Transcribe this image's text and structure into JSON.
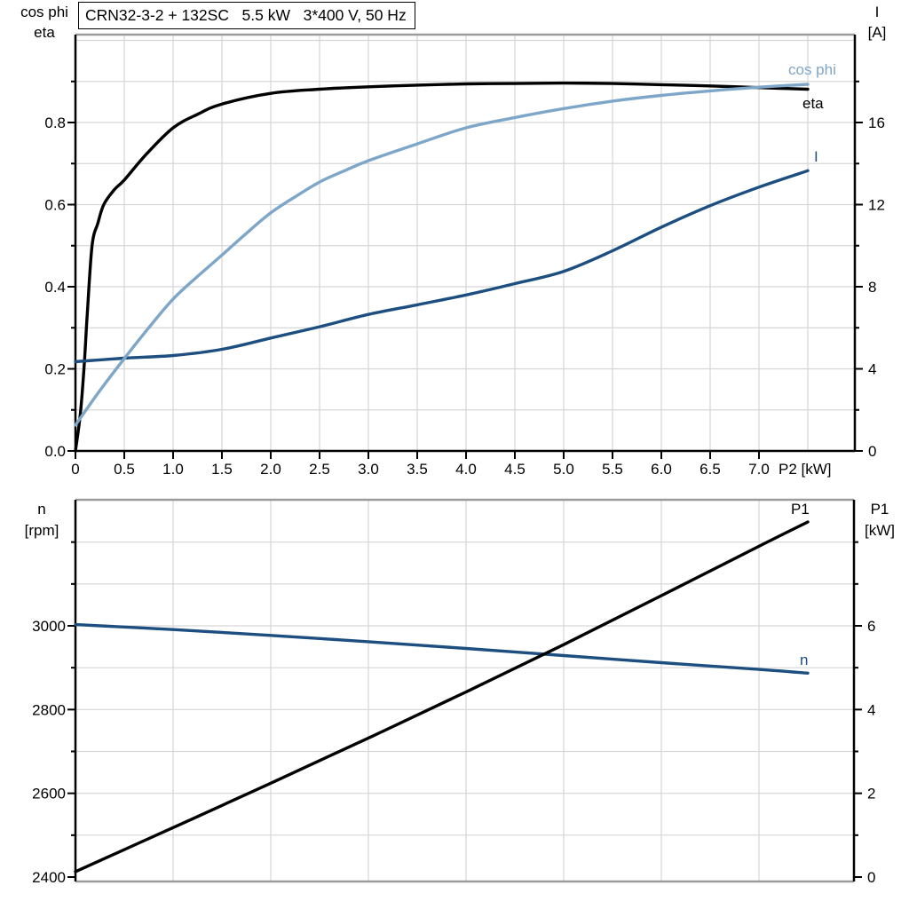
{
  "title": "CRN32-3-2 + 132SC   5.5 kW   3*400 V, 50 Hz",
  "colors": {
    "black": "#000000",
    "dark_blue": "#1c4f80",
    "light_blue": "#7ea6c8",
    "grid": "#d6d6d6",
    "frame_gray": "#9c9c9c",
    "background": "#ffffff"
  },
  "top_chart": {
    "left_axis_names": [
      "cos phi",
      "eta"
    ],
    "right_axis_names": [
      "I",
      "[A]"
    ],
    "x_axis_name": "P2 [kW]",
    "curve_labels": {
      "cos_phi": "cos phi",
      "eta": "eta",
      "current": "I"
    }
  },
  "bottom_chart": {
    "left_axis_names": [
      "n",
      "[rpm]"
    ],
    "right_axis_names": [
      "P1",
      "[kW]"
    ],
    "curve_labels": {
      "p1": "P1",
      "n": "n"
    }
  },
  "chart_data": [
    {
      "type": "line",
      "title": "CRN32-3-2 + 132SC   5.5 kW   3*400 V, 50 Hz",
      "xlabel": "P2 [kW]",
      "xlim": [
        0,
        8
      ],
      "x_ticks": [
        0,
        0.5,
        1,
        1.5,
        2,
        2.5,
        3,
        3.5,
        4,
        4.5,
        5,
        5.5,
        6,
        6.5,
        7
      ],
      "x_tick_labels": [
        "0",
        "0.5",
        "1.0",
        "1.5",
        "2.0",
        "2.5",
        "3.0",
        "3.5",
        "4.0",
        "4.5",
        "5.0",
        "5.5",
        "6.0",
        "6.5",
        "7.0"
      ],
      "x_grid_step": 0.5,
      "grid": true,
      "left_axis": {
        "label": "cos phi / eta",
        "range": [
          0,
          1.014
        ],
        "ticks": [
          0,
          0.2,
          0.4,
          0.6,
          0.8
        ],
        "tick_labels": [
          "0.0",
          "0.2",
          "0.4",
          "0.6",
          "0.8"
        ],
        "minor_ticks": [
          0.1,
          0.3,
          0.5,
          0.7,
          0.9
        ]
      },
      "right_axis": {
        "label": "I [A]",
        "range": [
          0,
          20.3
        ],
        "ticks": [
          0,
          4,
          8,
          12,
          16
        ],
        "tick_labels": [
          "0",
          "4",
          "8",
          "12",
          "16"
        ],
        "minor_ticks": [
          2,
          6,
          10,
          14,
          18
        ]
      },
      "series": [
        {
          "name": "eta",
          "axis": "left",
          "color_key": "black",
          "points": [
            [
              0,
              0
            ],
            [
              0.05,
              0.09
            ],
            [
              0.09,
              0.21
            ],
            [
              0.12,
              0.33
            ],
            [
              0.17,
              0.5
            ],
            [
              0.23,
              0.555
            ],
            [
              0.29,
              0.6
            ],
            [
              0.4,
              0.637
            ],
            [
              0.5,
              0.66
            ],
            [
              0.73,
              0.724
            ],
            [
              1,
              0.787
            ],
            [
              1.25,
              0.82
            ],
            [
              1.5,
              0.845
            ],
            [
              2,
              0.871
            ],
            [
              2.5,
              0.881
            ],
            [
              3,
              0.887
            ],
            [
              3.5,
              0.891
            ],
            [
              4,
              0.894
            ],
            [
              4.5,
              0.895
            ],
            [
              5,
              0.896
            ],
            [
              5.5,
              0.895
            ],
            [
              6,
              0.892
            ],
            [
              6.5,
              0.889
            ],
            [
              7,
              0.885
            ],
            [
              7.5,
              0.881
            ]
          ]
        },
        {
          "name": "I",
          "axis": "right",
          "color_key": "dark_blue",
          "points": [
            [
              0,
              4.35
            ],
            [
              0.5,
              4.52
            ],
            [
              1,
              4.65
            ],
            [
              1.5,
              4.95
            ],
            [
              2,
              5.5
            ],
            [
              2.5,
              6.05
            ],
            [
              3,
              6.65
            ],
            [
              3.5,
              7.12
            ],
            [
              4,
              7.6
            ],
            [
              4.5,
              8.15
            ],
            [
              5,
              8.75
            ],
            [
              5.5,
              9.75
            ],
            [
              6,
              10.9
            ],
            [
              6.5,
              11.95
            ],
            [
              7,
              12.85
            ],
            [
              7.5,
              13.65
            ]
          ]
        },
        {
          "name": "cos phi",
          "axis": "left",
          "color_key": "light_blue",
          "points": [
            [
              0,
              0.063
            ],
            [
              0.25,
              0.147
            ],
            [
              0.5,
              0.225
            ],
            [
              0.75,
              0.3
            ],
            [
              1,
              0.37
            ],
            [
              1.25,
              0.425
            ],
            [
              1.5,
              0.477
            ],
            [
              1.75,
              0.53
            ],
            [
              2,
              0.58
            ],
            [
              2.25,
              0.619
            ],
            [
              2.5,
              0.655
            ],
            [
              2.75,
              0.682
            ],
            [
              3,
              0.707
            ],
            [
              3.5,
              0.748
            ],
            [
              4,
              0.787
            ],
            [
              4.5,
              0.812
            ],
            [
              5,
              0.834
            ],
            [
              5.5,
              0.852
            ],
            [
              6,
              0.866
            ],
            [
              6.5,
              0.877
            ],
            [
              7,
              0.886
            ],
            [
              7.5,
              0.893
            ]
          ]
        }
      ]
    },
    {
      "type": "line",
      "title": "",
      "xlabel": "",
      "xlim": [
        0,
        7.97
      ],
      "x_grid_step": 1,
      "grid": true,
      "left_axis": {
        "label": "n [rpm]",
        "range": [
          2390,
          3300
        ],
        "ticks": [
          2400,
          2600,
          2800,
          3000
        ],
        "tick_labels": [
          "2400",
          "2600",
          "2800",
          "3000"
        ],
        "minor_ticks": [
          2500,
          2700,
          2900,
          3100,
          3200
        ]
      },
      "right_axis": {
        "label": "P1 [kW]",
        "range": [
          -0.1,
          9
        ],
        "ticks": [
          0,
          2,
          4,
          6
        ],
        "tick_labels": [
          "0",
          "2",
          "4",
          "6"
        ],
        "minor_ticks": [
          1,
          3,
          5,
          7,
          8
        ]
      },
      "series": [
        {
          "name": "n",
          "axis": "left",
          "color_key": "dark_blue",
          "points": [
            [
              0,
              3003
            ],
            [
              1,
              2991
            ],
            [
              2,
              2977
            ],
            [
              3,
              2962
            ],
            [
              4,
              2946
            ],
            [
              5,
              2929
            ],
            [
              6,
              2912
            ],
            [
              7,
              2896
            ],
            [
              7.5,
              2887
            ]
          ]
        },
        {
          "name": "P1",
          "axis": "right",
          "color_key": "black",
          "points": [
            [
              0,
              0.13
            ],
            [
              1,
              1.18
            ],
            [
              2,
              2.24
            ],
            [
              3,
              3.32
            ],
            [
              4,
              4.42
            ],
            [
              5,
              5.55
            ],
            [
              6,
              6.72
            ],
            [
              7,
              7.9
            ],
            [
              7.5,
              8.48
            ]
          ]
        }
      ]
    }
  ]
}
